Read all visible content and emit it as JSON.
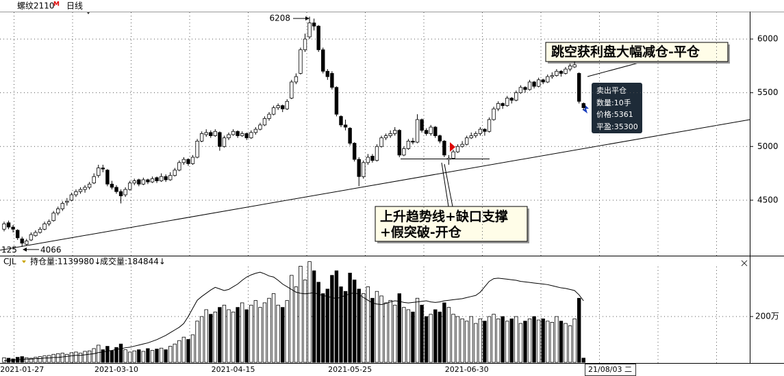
{
  "header": {
    "symbol": "螺纹2110",
    "flag": "M",
    "period": "日线"
  },
  "chart_data": [
    {
      "type": "candlestick",
      "open": [
        4230,
        4290,
        4250,
        4220,
        4140,
        4090,
        4130,
        4170,
        4200,
        4230,
        4280,
        4310,
        4380,
        4420,
        4480,
        4500,
        4550,
        4580,
        4600,
        4620,
        4660,
        4730,
        4800,
        4780,
        4650,
        4620,
        4580,
        4550,
        4600,
        4660,
        4690,
        4650,
        4690,
        4670,
        4710,
        4680,
        4720,
        4690,
        4730,
        4780,
        4850,
        4880,
        4840,
        4900,
        5050,
        5110,
        5130,
        5100,
        5130,
        5000,
        5080,
        5110,
        5140,
        5100,
        5120,
        5080,
        5130,
        5160,
        5200,
        5260,
        5300,
        5360,
        5380,
        5350,
        5450,
        5600,
        5680,
        5900,
        6020,
        6150,
        6120,
        5900,
        5700,
        5680,
        5550,
        5280,
        5200,
        5170,
        5030,
        4880,
        4720,
        4850,
        4910,
        4870,
        5000,
        5080,
        5100,
        5120,
        5150,
        4920,
        4980,
        5050,
        5040,
        5250,
        5150,
        5120,
        5180,
        5100,
        5050,
        4880,
        4890,
        4950,
        5000,
        5020,
        5080,
        5100,
        5120,
        5160,
        5140,
        5250,
        5350,
        5400,
        5380,
        5450,
        5430,
        5500,
        5550,
        5530,
        5600,
        5560,
        5620,
        5600,
        5650,
        5660,
        5700,
        5680,
        5720,
        5740,
        5680,
        5400
      ],
      "high": [
        4300,
        4310,
        4270,
        4230,
        4160,
        4140,
        4200,
        4220,
        4250,
        4300,
        4320,
        4400,
        4440,
        4490,
        4520,
        4570,
        4600,
        4620,
        4640,
        4670,
        4750,
        4830,
        4830,
        4790,
        4680,
        4640,
        4600,
        4620,
        4680,
        4700,
        4700,
        4710,
        4700,
        4720,
        4720,
        4750,
        4740,
        4760,
        4800,
        4870,
        4900,
        4890,
        4920,
        5070,
        5140,
        5160,
        5150,
        5160,
        5140,
        5100,
        5130,
        5160,
        5150,
        5140,
        5130,
        5150,
        5180,
        5220,
        5280,
        5320,
        5380,
        5400,
        5390,
        5440,
        5620,
        5680,
        5920,
        6050,
        6208,
        6190,
        6130,
        5920,
        5720,
        5700,
        5560,
        5290,
        5250,
        5180,
        5040,
        4900,
        4870,
        4930,
        4930,
        5020,
        5100,
        5120,
        5150,
        5180,
        5160,
        5000,
        5070,
        5080,
        5300,
        5260,
        5170,
        5200,
        5190,
        5110,
        5060,
        4920,
        4970,
        5020,
        5050,
        5100,
        5130,
        5140,
        5180,
        5170,
        5270,
        5370,
        5420,
        5410,
        5470,
        5460,
        5520,
        5570,
        5560,
        5620,
        5610,
        5640,
        5630,
        5670,
        5690,
        5720,
        5710,
        5740,
        5770,
        5790,
        5690,
        5410
      ],
      "low": [
        4210,
        4230,
        4200,
        4130,
        4066,
        4080,
        4120,
        4160,
        4190,
        4220,
        4260,
        4300,
        4360,
        4400,
        4450,
        4490,
        4530,
        4560,
        4570,
        4600,
        4650,
        4710,
        4760,
        4630,
        4600,
        4560,
        4470,
        4530,
        4590,
        4640,
        4630,
        4640,
        4650,
        4660,
        4660,
        4670,
        4670,
        4680,
        4720,
        4770,
        4830,
        4820,
        4830,
        4890,
        5040,
        5090,
        5080,
        5090,
        4960,
        4990,
        5060,
        5100,
        5080,
        5090,
        5060,
        5070,
        5110,
        5150,
        5190,
        5240,
        5290,
        5340,
        5320,
        5340,
        5440,
        5580,
        5670,
        5880,
        6000,
        6080,
        5880,
        5680,
        5620,
        5530,
        5280,
        5180,
        5150,
        5010,
        4860,
        4630,
        4700,
        4830,
        4850,
        4860,
        4990,
        5060,
        5080,
        5100,
        4900,
        4910,
        4970,
        5020,
        5030,
        5130,
        5100,
        5100,
        5080,
        5030,
        4900,
        4830,
        4880,
        4940,
        4990,
        5010,
        5070,
        5080,
        5100,
        5100,
        5130,
        5240,
        5330,
        5350,
        5370,
        5400,
        5420,
        5490,
        5500,
        5520,
        5540,
        5550,
        5580,
        5590,
        5630,
        5650,
        5650,
        5670,
        5700,
        5730,
        5400,
        5340
      ],
      "close": [
        4280,
        4250,
        4230,
        4150,
        4100,
        4120,
        4180,
        4200,
        4230,
        4280,
        4300,
        4380,
        4420,
        4470,
        4490,
        4550,
        4580,
        4600,
        4620,
        4650,
        4720,
        4800,
        4790,
        4650,
        4620,
        4580,
        4540,
        4600,
        4660,
        4680,
        4650,
        4690,
        4670,
        4700,
        4680,
        4720,
        4690,
        4730,
        4780,
        4850,
        4880,
        4840,
        4900,
        5050,
        5120,
        5130,
        5100,
        5140,
        5000,
        5080,
        5110,
        5140,
        5100,
        5120,
        5080,
        5130,
        5160,
        5200,
        5260,
        5300,
        5360,
        5380,
        5350,
        5420,
        5600,
        5650,
        5900,
        6000,
        6150,
        6120,
        5900,
        5700,
        5650,
        5550,
        5300,
        5200,
        5180,
        5030,
        4880,
        4720,
        4850,
        4900,
        4870,
        5000,
        5080,
        5100,
        5120,
        5150,
        4920,
        4980,
        5050,
        5040,
        5250,
        5150,
        5120,
        5180,
        5100,
        5050,
        4920,
        4890,
        4950,
        5000,
        5020,
        5080,
        5100,
        5120,
        5160,
        5140,
        5250,
        5350,
        5400,
        5380,
        5450,
        5430,
        5500,
        5550,
        5530,
        5600,
        5560,
        5620,
        5600,
        5650,
        5660,
        5700,
        5680,
        5720,
        5750,
        5760,
        5420,
        5361
      ],
      "up_color": "#ffffff",
      "down_color": "#000000",
      "ylim": [
        3990,
        6255
      ],
      "yticks": [
        4500,
        5000,
        5500,
        6000
      ],
      "grid": true,
      "count_label": "125",
      "annotations": [
        "跳空获利盘大幅减仓-平仓",
        "上升趋势线+缺口支撑",
        "+假突破-开仓"
      ],
      "tooltip": [
        "卖出平仓",
        "数量:10手",
        "价格:5361",
        "平盈:35300"
      ]
    },
    {
      "type": "bar",
      "indicator": "CJL",
      "oi_label": "持仓量:1139980↓",
      "volume_label": "成交量:184844↓",
      "categories": [
        null,
        null,
        null,
        null,
        "2021-01-27",
        null,
        null,
        null,
        null,
        null,
        null,
        null,
        null,
        null,
        null,
        null,
        null,
        null,
        null,
        null,
        null,
        null,
        null,
        null,
        null,
        "2021-03-10",
        null,
        null,
        null,
        null,
        null,
        null,
        null,
        null,
        null,
        null,
        null,
        null,
        null,
        null,
        null,
        null,
        null,
        null,
        null,
        null,
        null,
        null,
        null,
        null,
        null,
        "2021-04-15",
        null,
        null,
        null,
        null,
        null,
        null,
        null,
        null,
        null,
        null,
        null,
        null,
        null,
        null,
        null,
        null,
        null,
        null,
        null,
        null,
        null,
        null,
        null,
        null,
        null,
        "2021-05-25",
        null,
        null,
        null,
        null,
        null,
        null,
        null,
        null,
        null,
        null,
        null,
        null,
        null,
        null,
        null,
        null,
        null,
        null,
        null,
        null,
        null,
        null,
        null,
        null,
        null,
        "2021-06-30",
        null,
        null,
        null,
        null,
        null,
        null,
        null,
        null,
        null,
        null,
        null,
        null,
        null,
        null,
        null,
        null,
        null,
        null,
        null,
        null,
        null,
        null,
        null,
        null,
        null,
        null
      ],
      "cursor_date": "21/08/03 二",
      "series": [
        {
          "values": [
            200000,
            180000,
            150000,
            220000,
            250000,
            200000,
            180000,
            220000,
            250000,
            280000,
            300000,
            350000,
            380000,
            400000,
            350000,
            420000,
            450000,
            400000,
            480000,
            500000,
            600000,
            750000,
            550000,
            700000,
            500000,
            650000,
            800000,
            550000,
            450000,
            500000,
            550000,
            480000,
            600000,
            520000,
            580000,
            620000,
            550000,
            700000,
            800000,
            950000,
            1100000,
            1000000,
            1200000,
            1800000,
            2000000,
            2300000,
            2100000,
            2200000,
            2400000,
            2500000,
            2300000,
            2200000,
            2400000,
            2600000,
            2300000,
            2500000,
            2700000,
            2400000,
            2600000,
            2800000,
            3000000,
            2500000,
            2400000,
            2700000,
            3800000,
            3300000,
            4200000,
            3600000,
            4400000,
            4000000,
            3500000,
            3000000,
            3200000,
            3800000,
            4000000,
            3300000,
            3100000,
            3900000,
            3600000,
            3200000,
            3000000,
            3300000,
            2800000,
            3100000,
            2900000,
            2600000,
            2700000,
            2500000,
            3000000,
            2400000,
            2300000,
            2200000,
            2800000,
            2500000,
            2000000,
            2100000,
            2300000,
            2200000,
            2600000,
            2400000,
            2100000,
            2000000,
            1900000,
            1800000,
            2000000,
            1700000,
            1900000,
            1800000,
            2000000,
            2100000,
            1900000,
            2000000,
            1800000,
            1900000,
            2000000,
            1700000,
            1800000,
            1900000,
            2000000,
            1850000,
            1900000,
            1800000,
            1750000,
            2000000,
            1800000,
            1700000,
            1600000,
            1900000,
            2800000,
            184844
          ]
        },
        {
          "values": [
            30000,
            40000,
            40000,
            50000,
            50000,
            60000,
            60000,
            70000,
            70000,
            80000,
            80000,
            90000,
            90000,
            100000,
            110000,
            120000,
            130000,
            130000,
            140000,
            150000,
            160000,
            180000,
            190000,
            210000,
            220000,
            240000,
            250000,
            270000,
            280000,
            300000,
            320000,
            340000,
            360000,
            390000,
            420000,
            460000,
            500000,
            550000,
            600000,
            650000,
            720000,
            850000,
            1000000,
            1150000,
            1220000,
            1280000,
            1340000,
            1390000,
            1360000,
            1330000,
            1350000,
            1400000,
            1450000,
            1520000,
            1580000,
            1620000,
            1650000,
            1670000,
            1640000,
            1600000,
            1580000,
            1520000,
            1450000,
            1400000,
            1350000,
            1300000,
            1280000,
            1270000,
            1280000,
            1290000,
            1260000,
            1240000,
            1220000,
            1200000,
            1180000,
            1210000,
            1240000,
            1270000,
            1290000,
            1260000,
            1200000,
            1150000,
            1100000,
            1080000,
            1070000,
            1090000,
            1120000,
            1140000,
            1130000,
            1110000,
            1100000,
            1110000,
            1120000,
            1130000,
            1140000,
            1120000,
            1110000,
            1120000,
            1140000,
            1150000,
            1160000,
            1170000,
            1180000,
            1200000,
            1220000,
            1240000,
            1300000,
            1400000,
            1500000,
            1550000,
            1560000,
            1550000,
            1540000,
            1530000,
            1520000,
            1500000,
            1490000,
            1480000,
            1470000,
            1460000,
            1450000,
            1440000,
            1420000,
            1400000,
            1380000,
            1370000,
            1350000,
            1330000,
            1250000,
            1139980
          ],
          "axis": "y2",
          "color": "#000000"
        }
      ],
      "ylim": [
        0,
        4480000
      ],
      "yticks": [
        {
          "value": 2000000,
          "label": "200万"
        }
      ],
      "y2lim": [
        0,
        1900000
      ],
      "grid": true
    }
  ]
}
